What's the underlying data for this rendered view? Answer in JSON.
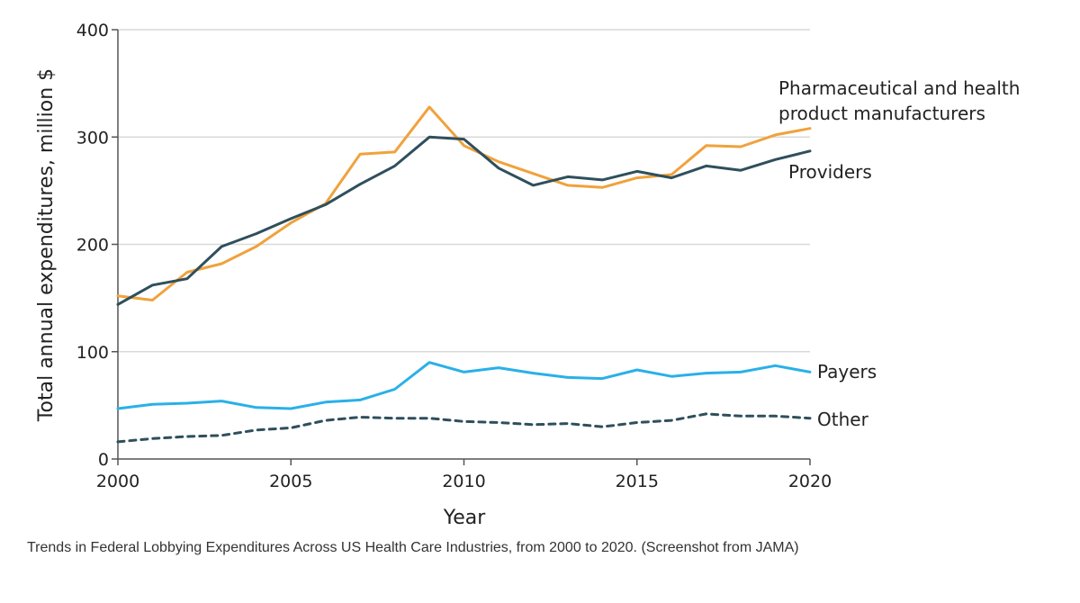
{
  "chart_data": {
    "type": "line",
    "title": "",
    "xlabel": "Year",
    "ylabel": "Total annual expenditures, million $",
    "xlim": [
      2000,
      2020
    ],
    "ylim": [
      0,
      400
    ],
    "x_ticks": [
      2000,
      2005,
      2010,
      2015,
      2020
    ],
    "y_ticks": [
      0,
      100,
      200,
      300,
      400
    ],
    "grid": true,
    "x": [
      2000,
      2001,
      2002,
      2003,
      2004,
      2005,
      2006,
      2007,
      2008,
      2009,
      2010,
      2011,
      2012,
      2013,
      2014,
      2015,
      2016,
      2017,
      2018,
      2019,
      2020
    ],
    "series": [
      {
        "name": "Pharmaceutical and health product manufacturers",
        "label_lines": [
          "Pharmaceutical and health",
          "product manufacturers"
        ],
        "color": "#f0a23c",
        "dash": "solid",
        "values": [
          152,
          148,
          174,
          182,
          198,
          220,
          238,
          284,
          286,
          328,
          292,
          277,
          266,
          255,
          253,
          262,
          265,
          292,
          291,
          302,
          308
        ]
      },
      {
        "name": "Providers",
        "label_lines": [
          "Providers"
        ],
        "color": "#2f4f5c",
        "dash": "solid",
        "values": [
          144,
          162,
          168,
          198,
          210,
          224,
          237,
          256,
          273,
          300,
          298,
          271,
          255,
          263,
          260,
          268,
          262,
          273,
          269,
          279,
          287
        ]
      },
      {
        "name": "Payers",
        "label_lines": [
          "Payers"
        ],
        "color": "#2ab0e8",
        "dash": "solid",
        "values": [
          47,
          51,
          52,
          54,
          48,
          47,
          53,
          55,
          65,
          90,
          81,
          85,
          80,
          76,
          75,
          83,
          77,
          80,
          81,
          87,
          81
        ]
      },
      {
        "name": "Other",
        "label_lines": [
          "Other"
        ],
        "color": "#2f4f5c",
        "dash": "dashed",
        "values": [
          16,
          19,
          21,
          22,
          27,
          29,
          36,
          39,
          38,
          38,
          35,
          34,
          32,
          33,
          30,
          34,
          36,
          42,
          40,
          40,
          38
        ]
      }
    ]
  },
  "caption": "Trends in Federal Lobbying Expenditures Across US Health Care Industries, from  2000 to 2020. (Screenshot from JAMA)"
}
